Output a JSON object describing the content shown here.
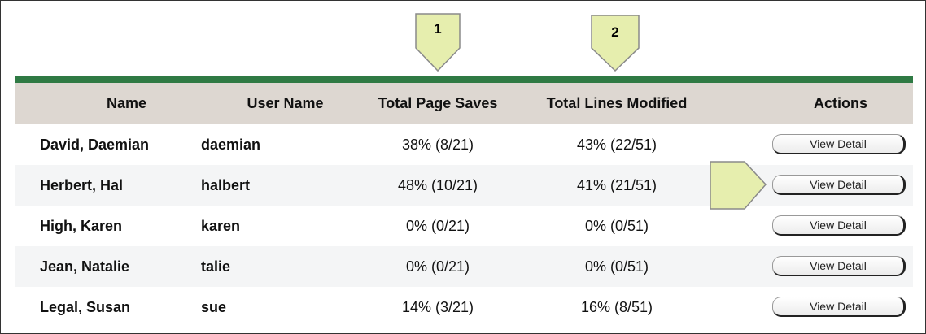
{
  "callouts": [
    "1",
    "2"
  ],
  "table": {
    "header": [
      "Name",
      "User Name",
      "Total Page Saves",
      "Total Lines Modified",
      "Actions"
    ],
    "rows": [
      [
        "David, Daemian",
        "daemian",
        "38% (8/21)",
        "43% (22/51)",
        "View Detail"
      ],
      [
        "Herbert, Hal",
        "halbert",
        "48% (10/21)",
        "41% (21/51)",
        "View Detail"
      ],
      [
        "High, Karen",
        "karen",
        "0% (0/21)",
        "0% (0/51)",
        "View Detail"
      ],
      [
        "Jean, Natalie",
        "talie",
        "0% (0/21)",
        "0% (0/51)",
        "View Detail"
      ],
      [
        "Legal, Susan",
        "sue",
        "14% (3/21)",
        "16% (8/51)",
        "View Detail"
      ]
    ]
  }
}
